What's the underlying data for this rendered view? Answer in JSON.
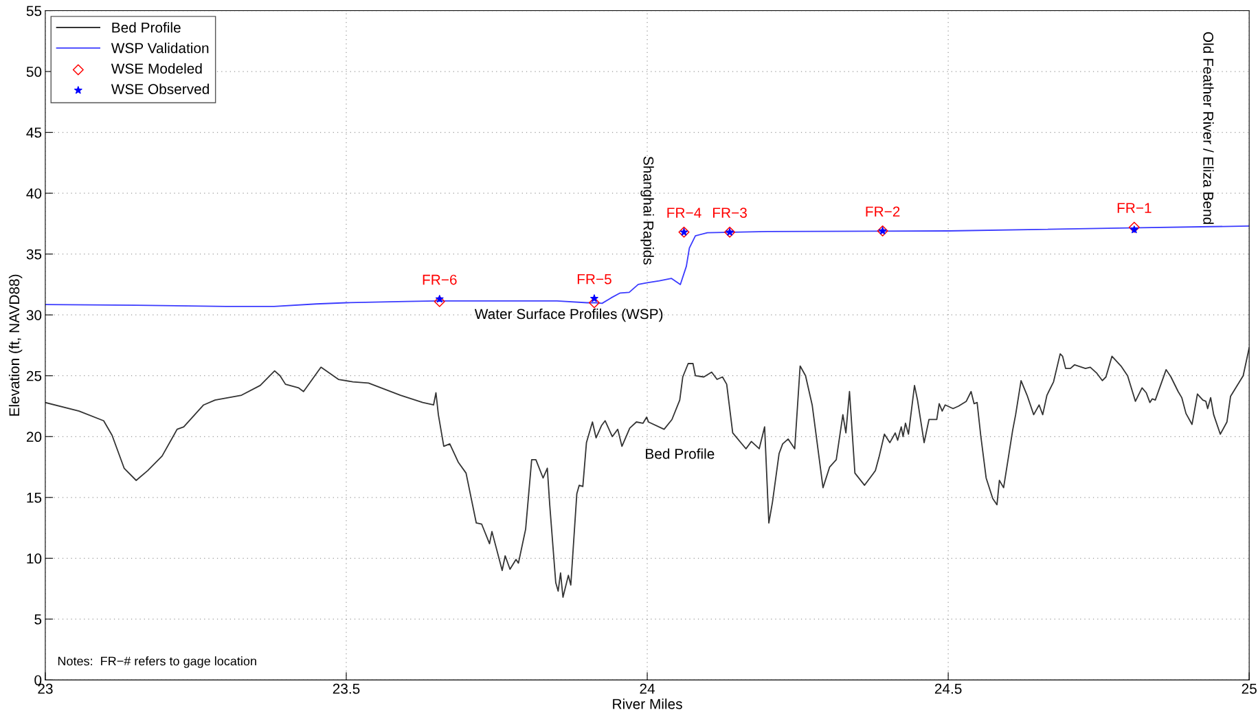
{
  "chart_data": {
    "type": "line",
    "xlabel": "River Miles",
    "ylabel": "Elevation (ft, NAVD88)",
    "xlim": [
      23,
      25
    ],
    "ylim": [
      0,
      55
    ],
    "xticks": [
      23,
      23.5,
      24,
      24.5,
      25
    ],
    "yticks": [
      0,
      5,
      10,
      15,
      20,
      25,
      30,
      35,
      40,
      45,
      50,
      55
    ],
    "grid": true,
    "legend": "top left",
    "series": [
      {
        "name": "Bed Profile",
        "color": "#333333",
        "x": [
          23.0,
          23.056,
          23.097,
          23.111,
          23.131,
          23.151,
          23.17,
          23.194,
          23.219,
          23.23,
          23.263,
          23.282,
          23.326,
          23.357,
          23.381,
          23.39,
          23.399,
          23.421,
          23.429,
          23.458,
          23.487,
          23.511,
          23.537,
          23.59,
          23.627,
          23.645,
          23.649,
          23.653,
          23.662,
          23.672,
          23.686,
          23.699,
          23.716,
          23.725,
          23.738,
          23.742,
          23.759,
          23.764,
          23.772,
          23.782,
          23.786,
          23.798,
          23.808,
          23.815,
          23.827,
          23.834,
          23.838,
          23.848,
          23.852,
          23.856,
          23.86,
          23.869,
          23.873,
          23.883,
          23.887,
          23.893,
          23.899,
          23.909,
          23.915,
          23.924,
          23.93,
          23.942,
          23.951,
          23.958,
          23.971,
          23.982,
          23.993,
          23.999,
          24.002,
          24.028,
          24.041,
          24.054,
          24.059,
          24.068,
          24.076,
          24.08,
          24.094,
          24.107,
          24.116,
          24.125,
          24.132,
          24.142,
          24.164,
          24.173,
          24.186,
          24.195,
          24.202,
          24.208,
          24.219,
          24.225,
          24.234,
          24.245,
          24.254,
          24.263,
          24.274,
          24.292,
          24.303,
          24.314,
          24.325,
          24.33,
          24.336,
          24.345,
          24.361,
          24.379,
          24.385,
          24.394,
          24.403,
          24.412,
          24.416,
          24.422,
          24.425,
          24.429,
          24.434,
          24.444,
          24.449,
          24.46,
          24.468,
          24.481,
          24.485,
          24.49,
          24.495,
          24.508,
          24.517,
          24.53,
          24.538,
          24.543,
          24.548,
          24.554,
          24.563,
          24.574,
          24.581,
          24.585,
          24.592,
          24.6,
          24.607,
          24.612,
          24.621,
          24.631,
          24.642,
          24.651,
          24.657,
          24.664,
          24.675,
          24.686,
          24.69,
          24.695,
          24.703,
          24.71,
          24.728,
          24.736,
          24.747,
          24.756,
          24.762,
          24.772,
          24.787,
          24.798,
          24.811,
          24.822,
          24.829,
          24.835,
          24.839,
          24.844,
          24.862,
          24.87,
          24.882,
          24.888,
          24.895,
          24.905,
          24.914,
          24.923,
          24.928,
          24.931,
          24.936,
          24.941,
          24.952,
          24.963,
          24.969,
          24.99,
          25.0
        ],
        "values": [
          22.8,
          22.1,
          21.3,
          20.1,
          17.4,
          16.4,
          17.2,
          18.4,
          20.6,
          20.8,
          22.6,
          23.0,
          23.4,
          24.2,
          25.4,
          25.0,
          24.3,
          24.0,
          23.7,
          25.7,
          24.7,
          24.5,
          24.4,
          23.4,
          22.8,
          22.6,
          23.6,
          21.8,
          19.2,
          19.4,
          17.9,
          17.0,
          12.9,
          12.8,
          11.2,
          12.2,
          9.0,
          10.2,
          9.1,
          9.9,
          9.6,
          12.4,
          18.1,
          18.1,
          16.6,
          17.4,
          14.4,
          8.0,
          7.3,
          8.8,
          6.8,
          8.6,
          7.8,
          15.3,
          16.0,
          15.9,
          19.5,
          21.2,
          19.9,
          20.9,
          21.3,
          20.0,
          20.6,
          19.2,
          20.7,
          21.2,
          21.1,
          21.6,
          21.2,
          20.6,
          21.4,
          23.0,
          24.9,
          26.0,
          26.0,
          25.0,
          24.9,
          25.3,
          24.7,
          24.9,
          24.3,
          20.3,
          19.0,
          19.6,
          19.0,
          20.8,
          12.9,
          14.6,
          18.6,
          19.4,
          19.8,
          19.0,
          25.8,
          25.0,
          22.6,
          15.8,
          17.5,
          18.1,
          21.8,
          20.3,
          23.7,
          17.0,
          16.0,
          17.2,
          18.3,
          20.2,
          19.5,
          20.3,
          19.7,
          20.8,
          20.0,
          21.1,
          20.2,
          24.2,
          23.0,
          19.5,
          21.4,
          21.4,
          22.7,
          22.1,
          22.6,
          22.3,
          22.5,
          22.9,
          23.7,
          22.7,
          22.8,
          20.1,
          16.6,
          14.9,
          14.4,
          16.4,
          15.8,
          18.3,
          20.5,
          21.8,
          24.6,
          23.4,
          21.8,
          22.6,
          21.8,
          23.4,
          24.5,
          26.8,
          26.6,
          25.6,
          25.6,
          25.9,
          25.6,
          25.7,
          25.2,
          24.6,
          24.9,
          26.6,
          25.8,
          25.0,
          22.9,
          24.0,
          23.6,
          22.8,
          23.1,
          23.0,
          25.5,
          24.9,
          23.7,
          23.2,
          21.9,
          21.0,
          23.5,
          23.0,
          22.9,
          22.3,
          23.2,
          21.8,
          20.2,
          21.2,
          23.3,
          25.0,
          27.3
        ]
      },
      {
        "name": "WSP Validation",
        "color": "#3a3aff",
        "x": [
          23.0,
          23.15,
          23.3,
          23.38,
          23.45,
          23.5,
          23.6,
          23.65,
          23.75,
          23.85,
          23.9,
          23.915,
          23.925,
          23.94,
          23.955,
          23.97,
          23.985,
          24.0,
          24.02,
          24.04,
          24.055,
          24.065,
          24.07,
          24.08,
          24.1,
          24.2,
          24.5,
          24.8,
          25.0
        ],
        "values": [
          30.85,
          30.8,
          30.7,
          30.7,
          30.9,
          31.0,
          31.1,
          31.15,
          31.15,
          31.15,
          31.0,
          31.0,
          30.95,
          31.4,
          31.8,
          31.85,
          32.5,
          32.65,
          32.8,
          33.0,
          32.5,
          34.0,
          35.5,
          36.5,
          36.75,
          36.85,
          36.9,
          37.15,
          37.3
        ]
      },
      {
        "name": "WSE Modeled",
        "type": "scatter",
        "color": "#ff0000",
        "marker": "diamond",
        "x": [
          23.655,
          23.912,
          24.061,
          24.137,
          24.391,
          24.809
        ],
        "values": [
          31.1,
          31.0,
          36.8,
          36.8,
          36.9,
          37.2
        ]
      },
      {
        "name": "WSE Observed",
        "type": "scatter",
        "color": "#0000ff",
        "marker": "star",
        "x": [
          23.655,
          23.912,
          24.061,
          24.137,
          24.391,
          24.809
        ],
        "values": [
          31.3,
          31.35,
          36.8,
          36.8,
          36.9,
          37.0
        ]
      }
    ],
    "annotations": [
      "Shanghai Rapids",
      {
        "text": "Old Feather River / Eliza Bend",
        "x": 24.93,
        "y": 37.4
      },
      {
        "text": "FR−6",
        "x": 23.655,
        "y": 31.3
      },
      {
        "text": "FR−5",
        "x": 23.912,
        "y": 31.35
      },
      {
        "text": "FR−4",
        "x": 24.061,
        "y": 36.8
      },
      {
        "text": "FR−3",
        "x": 24.137,
        "y": 36.8
      },
      {
        "text": "FR−2",
        "x": 24.391,
        "y": 36.9
      },
      {
        "text": "FR−1",
        "x": 24.809,
        "y": 37.2
      },
      "Water Surface Profiles (WSP)",
      "Bed Profile",
      "Notes:  FR−# refers to gage location"
    ]
  }
}
